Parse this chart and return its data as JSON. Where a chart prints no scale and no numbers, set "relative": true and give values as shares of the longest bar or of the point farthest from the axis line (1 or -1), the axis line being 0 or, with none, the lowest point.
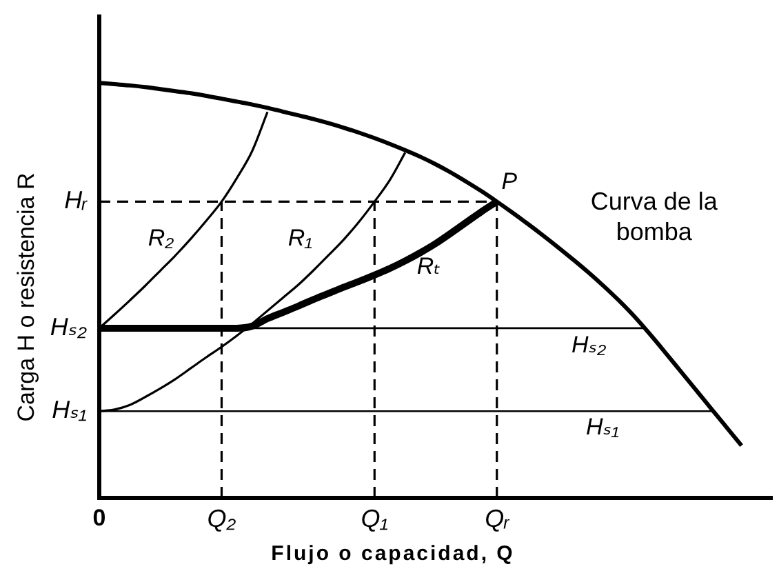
{
  "chart_data": {
    "type": "line",
    "relative": true,
    "xlabel": "Flujo o capacidad, Q",
    "ylabel": "Carga H o resistencia R",
    "categories": [
      "0",
      null,
      null,
      null,
      null,
      null,
      null,
      null,
      "Q₂",
      null,
      null,
      null,
      null,
      null,
      null,
      null,
      null,
      null,
      "Q₁",
      null,
      null,
      null,
      null,
      null,
      null,
      null,
      "Qᵣ",
      null,
      null,
      null,
      null,
      null,
      null,
      null,
      null,
      null,
      null,
      null,
      null,
      null,
      null,
      null,
      null,
      null,
      null
    ],
    "series": [
      {
        "name": "Curva de la bomba",
        "color": "#000000",
        "values": [
          1,
          0.997,
          0.994,
          0.99,
          0.985,
          0.98,
          0.975,
          0.969,
          0.962,
          0.955,
          0.948,
          0.94,
          0.931,
          0.922,
          0.913,
          0.903,
          0.892,
          0.88,
          0.867,
          0.853,
          0.838,
          0.822,
          0.804,
          0.784,
          0.762,
          0.739,
          0.714,
          0.688,
          0.661,
          0.633,
          0.604,
          0.574,
          0.543,
          0.51,
          0.475,
          0.437,
          0.395,
          0.351,
          0.306,
          0.261,
          0.216,
          0.171,
          0.126,
          null,
          null
        ]
      },
      {
        "name": "R₂",
        "color": "#000000",
        "values": [
          0.409,
          0.442,
          0.476,
          0.511,
          0.548,
          0.585,
          0.625,
          0.668,
          0.714,
          0.771,
          0.836,
          0.93,
          null,
          null,
          null,
          null,
          null,
          null,
          null,
          null,
          null,
          null,
          null,
          null,
          null,
          null,
          null,
          null,
          null,
          null,
          null,
          null,
          null,
          null,
          null,
          null,
          null,
          null,
          null,
          null,
          null,
          null,
          null,
          null,
          null
        ]
      },
      {
        "name": "R₁",
        "color": "#000000",
        "values": [
          0.209,
          0.213,
          0.224,
          0.243,
          0.264,
          0.287,
          0.313,
          0.339,
          0.364,
          0.391,
          0.42,
          0.451,
          0.482,
          0.513,
          0.548,
          0.585,
          0.623,
          0.666,
          0.714,
          0.766,
          0.832,
          null,
          null,
          null,
          null,
          null,
          null,
          null,
          null,
          null,
          null,
          null,
          null,
          null,
          null,
          null,
          null,
          null,
          null,
          null,
          null,
          null,
          null,
          null,
          null
        ]
      },
      {
        "name": "Rₜ",
        "color": "#000000",
        "values": [
          0.409,
          0.409,
          0.409,
          0.409,
          0.409,
          0.409,
          0.409,
          0.409,
          0.409,
          0.409,
          0.414,
          0.432,
          0.447,
          0.462,
          0.478,
          0.493,
          0.508,
          0.522,
          0.537,
          0.553,
          0.571,
          0.591,
          0.613,
          0.638,
          0.664,
          0.69,
          0.714,
          null,
          null,
          null,
          null,
          null,
          null,
          null,
          null,
          null,
          null,
          null,
          null,
          null,
          null,
          null,
          null,
          null,
          null
        ]
      }
    ],
    "ref_lines": [
      {
        "axis": "y",
        "value": 0.714,
        "label": "Hᵣ",
        "line_style": "dashed",
        "color": "#000000"
      },
      {
        "axis": "y",
        "value": 0.409,
        "label": "Hₛ₂",
        "line_style": "solid",
        "color": "#000000"
      },
      {
        "axis": "y",
        "value": 0.209,
        "label": "Hₛ₁",
        "line_style": "solid",
        "color": "#000000"
      },
      {
        "axis": "x",
        "value": "Q₂",
        "line_style": "dashed",
        "color": "#000000"
      },
      {
        "axis": "x",
        "value": "Q₁",
        "line_style": "dashed",
        "color": "#000000"
      },
      {
        "axis": "x",
        "value": "Qᵣ",
        "line_style": "dashed",
        "color": "#000000"
      }
    ],
    "annotations": [
      {
        "text": "P",
        "x": "Qᵣ",
        "y": 0.714
      },
      {
        "text": "Hₛ₂",
        "y": 0.409
      },
      {
        "text": "Hₛ₁",
        "y": 0.209
      }
    ],
    "marker": "none",
    "line_style": "solid",
    "grid": false,
    "legend": false
  }
}
